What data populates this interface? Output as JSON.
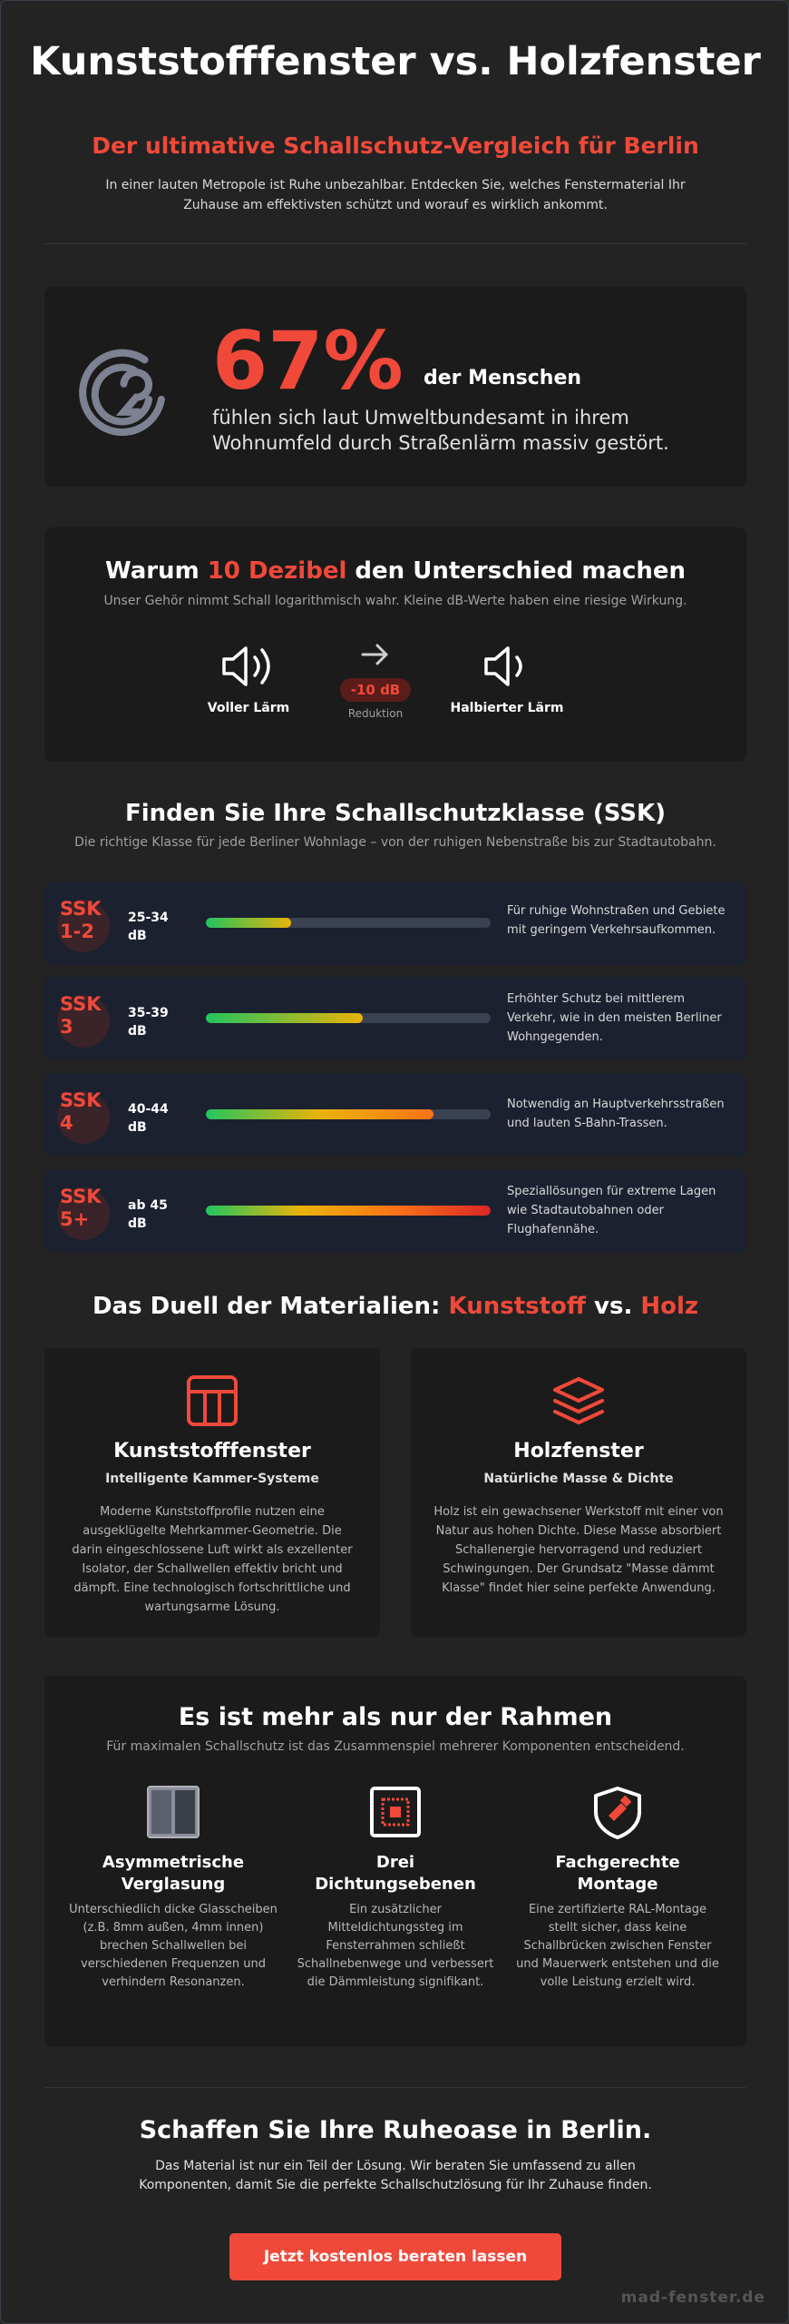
{
  "hero": {
    "title": "Kunststofffenster vs. Holzfenster",
    "subtitle": "Der ultimative Schallschutz-Vergleich für Berlin",
    "intro": "In einer lauten Metropole ist Ruhe unbezahlbar. Entdecken Sie, welches Fenstermaterial Ihr Zuhause am effektivsten schützt und worauf es wirklich ankommt."
  },
  "stat": {
    "number": "67%",
    "number_tail": "der Menschen",
    "description": "fühlen sich laut Umweltbundesamt in ihrem Wohnumfeld durch Straßenlärm massiv gestört.",
    "icon": "ear-icon"
  },
  "decibel": {
    "title_pre": "Warum ",
    "title_accent": "10 Dezibel",
    "title_post": " den Unterschied machen",
    "subtitle": "Unser Gehör nimmt Schall logarithmisch wahr. Kleine dB-Werte haben eine riesige Wirkung.",
    "full_label": "Voller Lärm",
    "pill": "-10 dB",
    "reduction": "Reduktion",
    "half_label": "Halbierter Lärm"
  },
  "ssk": {
    "title": "Finden Sie Ihre Schallschutzklasse (SSK)",
    "subtitle": "Die richtige Klasse für jede Berliner Wohnlage – von der ruhigen Nebenstraße bis zur Stadtautobahn.",
    "rows": [
      {
        "label1": "SSK",
        "label2": "1-2",
        "db1": "25-34",
        "db2": "dB",
        "fill": 0.3,
        "desc": "Für ruhige Wohnstraßen und Gebiete mit geringem Verkehrsaufkommen."
      },
      {
        "label1": "SSK",
        "label2": "3",
        "db1": "35-39",
        "db2": "dB",
        "fill": 0.55,
        "desc": "Erhöhter Schutz bei mittlerem Verkehr, wie in den meisten Berliner Wohngegenden."
      },
      {
        "label1": "SSK",
        "label2": "4",
        "db1": "40-44",
        "db2": "dB",
        "fill": 0.8,
        "desc": "Notwendig an Hauptverkehrsstraßen und lauten S-Bahn-Trassen."
      },
      {
        "label1": "SSK",
        "label2": "5+",
        "db1": "ab 45",
        "db2": "dB",
        "fill": 1.0,
        "desc": "Speziallösungen für extreme Lagen wie Stadtautobahnen oder Flughafennähe."
      }
    ]
  },
  "duel": {
    "title_pre": "Das Duell der Materialien: ",
    "title_a": "Kunststoff",
    "title_mid": " vs. ",
    "title_b": "Holz",
    "left": {
      "name": "Kunststofffenster",
      "tag": "Intelligente Kammer-Systeme",
      "text": "Moderne Kunststoffprofile nutzen eine ausgeklügelte Mehrkammer-Geometrie. Die darin eingeschlossene Luft wirkt als exzellenter Isolator, der Schallwellen effektiv bricht und dämpft. Eine technologisch fortschrittliche und wartungsarme Lösung.",
      "icon": "window-grid-icon"
    },
    "right": {
      "name": "Holzfenster",
      "tag": "Natürliche Masse & Dichte",
      "text": "Holz ist ein gewachsener Werkstoff mit einer von Natur aus hohen Dichte. Diese Masse absorbiert Schallenergie hervorragend und reduziert Schwingungen. Der Grundsatz \"Masse dämmt Klasse\" findet hier seine perfekte Anwendung.",
      "icon": "layers-icon"
    }
  },
  "rahmen": {
    "title": "Es ist mehr als nur der Rahmen",
    "subtitle": "Für maximalen Schallschutz ist das Zusammenspiel mehrerer Komponenten entscheidend.",
    "cols": [
      {
        "name1": "Asymmetrische",
        "name2": "Verglasung",
        "text": "Unterschiedlich dicke Glasscheiben (z.B. 8mm außen, 4mm innen) brechen Schallwellen bei verschiedenen Frequenzen und verhindern Resonanzen.",
        "icon": "glass-panes-icon"
      },
      {
        "name1": "Drei",
        "name2": "Dichtungsebenen",
        "text": "Ein zusätzlicher Mitteldichtungssteg im Fensterrahmen schließt Schallnebenwege und verbessert die Dämmleistung signifikant.",
        "icon": "seal-layers-icon"
      },
      {
        "name1": "Fachgerechte",
        "name2": "Montage",
        "text": "Eine zertifizierte RAL-Montage stellt sicher, dass keine Schallbrücken zwischen Fenster und Mauerwerk entstehen und die volle Leistung erzielt wird.",
        "icon": "shield-tool-icon"
      }
    ]
  },
  "cta": {
    "title": "Schaffen Sie Ihre Ruheoase in Berlin.",
    "text": "Das Material ist nur ein Teil der Lösung. Wir beraten Sie umfassend zu allen Komponenten, damit Sie die perfekte Schallschutzlösung für Ihr Zuhause finden.",
    "button": "Jetzt kostenlos beraten lassen",
    "brand": "mad-fenster.de"
  },
  "colors": {
    "accent": "#f0493a",
    "background": "#232323",
    "card": "#1b1b1b",
    "ssk_row": "#1c2130"
  }
}
